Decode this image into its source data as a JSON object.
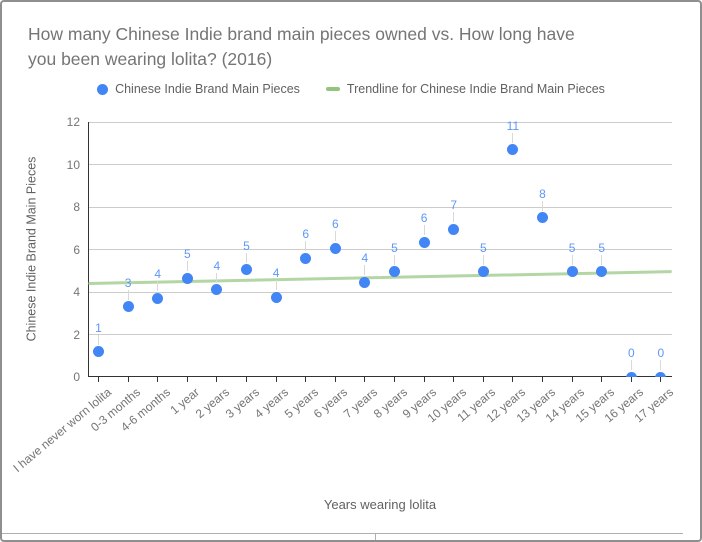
{
  "chart": {
    "title_line1": "How many Chinese Indie brand main pieces owned vs. How long have",
    "title_line2": "you been wearing lolita? (2016)",
    "legend": {
      "series": "Chinese Indie Brand Main Pieces",
      "trendline": "Trendline for Chinese Indie Brand Main Pieces"
    },
    "x_axis_title": "Years wearing lolita",
    "y_axis_title": "Chinese Indie Brand Main Pieces"
  },
  "chart_data": {
    "type": "scatter",
    "title": "How many Chinese Indie brand main pieces owned vs. How long have you been wearing lolita? (2016)",
    "xlabel": "Years wearing lolita",
    "ylabel": "Chinese Indie Brand Main Pieces",
    "categories": [
      "I have never worn lolita",
      "0-3 months",
      "4-6 months",
      "1 year",
      "2 years",
      "3 years",
      "4 years",
      "5 years",
      "6 years",
      "7 years",
      "8 years",
      "9 years",
      "10 years",
      "11 years",
      "12 years",
      "13 years",
      "14 years",
      "15 years",
      "16 years",
      "17 years"
    ],
    "series": [
      {
        "name": "Chinese Indie Brand Main Pieces",
        "values": [
          1.2,
          3.3,
          3.7,
          4.65,
          4.1,
          5.05,
          3.75,
          5.6,
          6.05,
          4.45,
          4.95,
          6.35,
          6.95,
          4.95,
          10.7,
          7.5,
          4.95,
          4.95,
          0,
          0
        ],
        "point_labels": [
          "1",
          "3",
          "4",
          "5",
          "4",
          "5",
          "4",
          "6",
          "6",
          "4",
          "5",
          "6",
          "7",
          "5",
          "11",
          "8",
          "5",
          "5",
          "0",
          "0"
        ]
      }
    ],
    "trendline": {
      "name": "Trendline for Chinese Indie Brand Main Pieces",
      "y_start": 4.38,
      "y_end": 4.94
    },
    "ylim": [
      0,
      12
    ],
    "ytick_step": 2,
    "grid": true,
    "legend_position": "top"
  },
  "colors": {
    "series": "#4285f4",
    "point_label": "#5e97f6",
    "trendline": "#93c47d",
    "gridline": "#cccccc",
    "axis_line": "#333333",
    "tick_text": "#757575",
    "title_text": "#757575",
    "axis_title_text": "#616161",
    "legend_text": "#616161",
    "leader_line": "#d9d9d9",
    "bottom_divider": "#b0b0b0"
  }
}
